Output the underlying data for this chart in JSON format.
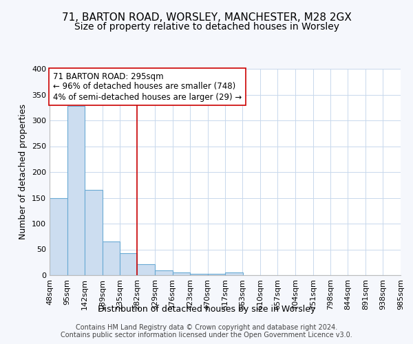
{
  "title_line1": "71, BARTON ROAD, WORSLEY, MANCHESTER, M28 2GX",
  "title_line2": "Size of property relative to detached houses in Worsley",
  "xlabel": "Distribution of detached houses by size in Worsley",
  "ylabel": "Number of detached properties",
  "bin_edges": [
    48,
    95,
    142,
    189,
    235,
    282,
    329,
    376,
    423,
    470,
    517,
    563,
    610,
    657,
    704,
    751,
    798,
    844,
    891,
    938,
    985
  ],
  "bar_heights": [
    150,
    328,
    165,
    65,
    43,
    22,
    10,
    5,
    3,
    3,
    5,
    0,
    0,
    0,
    0,
    0,
    0,
    0,
    0,
    0
  ],
  "bar_facecolor": "#ccddf0",
  "bar_edgecolor": "#6aaad4",
  "vline_x": 282,
  "vline_color": "#cc0000",
  "annotation_line1": "71 BARTON ROAD: 295sqm",
  "annotation_line2": "← 96% of detached houses are smaller (748)",
  "annotation_line3": "4% of semi-detached houses are larger (29) →",
  "annotation_box_color": "white",
  "annotation_box_edgecolor": "#cc0000",
  "ylim": [
    0,
    400
  ],
  "yticks": [
    0,
    50,
    100,
    150,
    200,
    250,
    300,
    350,
    400
  ],
  "footer_text": "Contains HM Land Registry data © Crown copyright and database right 2024.\nContains public sector information licensed under the Open Government Licence v3.0.",
  "bg_color": "#f5f7fc",
  "plot_bg_color": "#ffffff",
  "grid_color": "#c8d8ec",
  "title_fontsize": 11,
  "subtitle_fontsize": 10,
  "tick_fontsize": 8,
  "label_fontsize": 9,
  "footer_fontsize": 7
}
